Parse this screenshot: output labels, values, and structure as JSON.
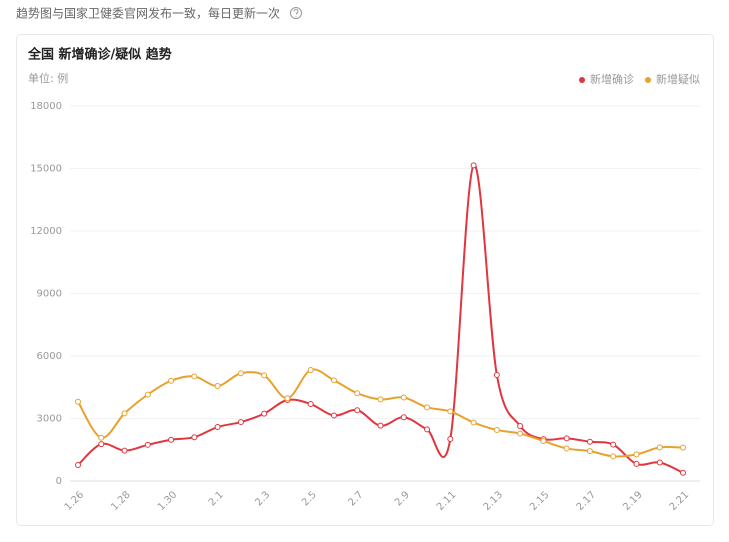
{
  "header": {
    "note": "趋势图与国家卫健委官网发布一致，每日更新一次"
  },
  "chart_data": {
    "type": "line",
    "title": "全国 新增确诊/疑似 趋势",
    "unit": "单位: 例",
    "categories": [
      "1.26",
      null,
      "1.28",
      null,
      "1.30",
      null,
      "2.1",
      null,
      "2.3",
      null,
      "2.5",
      null,
      "2.7",
      null,
      "2.9",
      null,
      "2.11",
      null,
      "2.13",
      null,
      "2.15",
      null,
      "2.17",
      null,
      "2.19",
      null,
      "2.21"
    ],
    "series": [
      {
        "name": "新增确诊",
        "color": "#e0363f",
        "values": [
          770,
          1771,
          1459,
          1737,
          1982,
          2102,
          2590,
          2829,
          3235,
          3887,
          3694,
          3143,
          3399,
          2656,
          3062,
          2478,
          2015,
          15152,
          5090,
          2641,
          2009,
          2048,
          1886,
          1749,
          820,
          889,
          397
        ]
      },
      {
        "name": "新增疑似",
        "color": "#e8a12c",
        "values": [
          3806,
          2077,
          3248,
          4148,
          4812,
          5019,
          4562,
          5173,
          5072,
          3971,
          5328,
          4833,
          4214,
          3916,
          4008,
          3536,
          3342,
          2807,
          2450,
          2277,
          1918,
          1563,
          1432,
          1185,
          1277,
          1614,
          1600
        ]
      }
    ],
    "ylim": [
      0,
      18000
    ],
    "yticks": [
      0,
      3000,
      6000,
      9000,
      12000,
      15000,
      18000
    ],
    "grid": true,
    "legend": "top-right",
    "smooth": true
  }
}
